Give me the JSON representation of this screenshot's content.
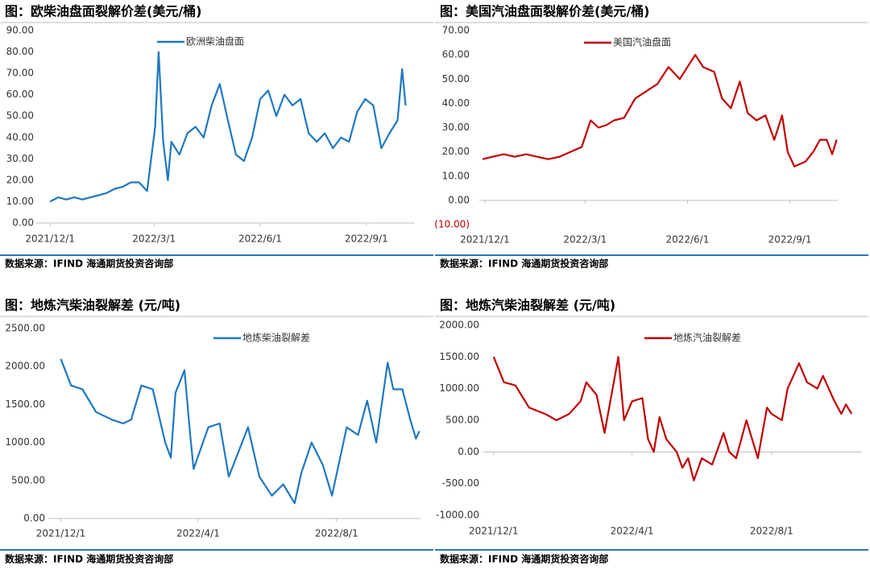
{
  "chart_data": [
    {
      "type": "line",
      "title": "图：欧柴油盘面裂解价差(美元/桶)",
      "source": "数据来源：IFIND  海通期货投资咨询部",
      "x": [
        "2021-12-01",
        "2021-12-08",
        "2021-12-15",
        "2021-12-22",
        "2021-12-29",
        "2022-01-05",
        "2022-01-12",
        "2022-01-19",
        "2022-01-26",
        "2022-02-02",
        "2022-02-09",
        "2022-02-16",
        "2022-02-23",
        "2022-03-02",
        "2022-03-05",
        "2022-03-09",
        "2022-03-13",
        "2022-03-16",
        "2022-03-23",
        "2022-03-30",
        "2022-04-06",
        "2022-04-13",
        "2022-04-20",
        "2022-04-27",
        "2022-05-04",
        "2022-05-11",
        "2022-05-18",
        "2022-05-25",
        "2022-06-01",
        "2022-06-08",
        "2022-06-15",
        "2022-06-22",
        "2022-06-29",
        "2022-07-06",
        "2022-07-13",
        "2022-07-20",
        "2022-07-27",
        "2022-08-03",
        "2022-08-10",
        "2022-08-17",
        "2022-08-24",
        "2022-08-31",
        "2022-09-07",
        "2022-09-14",
        "2022-09-21",
        "2022-09-28",
        "2022-10-02",
        "2022-10-05"
      ],
      "series": [
        {
          "name": "欧洲柴油盘面",
          "color": "#1f78c1",
          "values": [
            10,
            12,
            11,
            12,
            11,
            12,
            13,
            14,
            16,
            17,
            19,
            19,
            15,
            45,
            80,
            38,
            20,
            38,
            32,
            42,
            45,
            40,
            55,
            65,
            48,
            32,
            29,
            40,
            58,
            62,
            50,
            60,
            55,
            58,
            42,
            38,
            42,
            35,
            40,
            38,
            52,
            58,
            55,
            35,
            42,
            48,
            72,
            55
          ]
        }
      ],
      "xlim": [
        "2021-11-19",
        "2022-10-13"
      ],
      "xticks": [
        {
          "value": "2021-12-01",
          "label": "2021/12/1"
        },
        {
          "value": "2022-03-01",
          "label": "2022/3/1"
        },
        {
          "value": "2022-06-01",
          "label": "2022/6/1"
        },
        {
          "value": "2022-09-01",
          "label": "2022/9/1"
        }
      ],
      "ylim": [
        0,
        90
      ],
      "yticks": [
        {
          "value": 0,
          "label": "0.00"
        },
        {
          "value": 10,
          "label": "10.00"
        },
        {
          "value": 20,
          "label": "20.00"
        },
        {
          "value": 30,
          "label": "30.00"
        },
        {
          "value": 40,
          "label": "40.00"
        },
        {
          "value": 50,
          "label": "50.00"
        },
        {
          "value": 60,
          "label": "60.00"
        },
        {
          "value": 70,
          "label": "70.00"
        },
        {
          "value": 80,
          "label": "80.00"
        },
        {
          "value": 90,
          "label": "90.00"
        }
      ],
      "grid": false,
      "legend": "top"
    },
    {
      "type": "line",
      "title": "图：美国汽油盘面裂解价差(美元/桶)",
      "source": "数据来源：IFIND  海通期货投资咨询部",
      "x": [
        "2021-11-29",
        "2021-12-08",
        "2021-12-18",
        "2021-12-28",
        "2022-01-07",
        "2022-01-17",
        "2022-01-27",
        "2022-02-06",
        "2022-02-16",
        "2022-02-26",
        "2022-03-06",
        "2022-03-13",
        "2022-03-20",
        "2022-03-27",
        "2022-04-05",
        "2022-04-15",
        "2022-04-25",
        "2022-05-05",
        "2022-05-15",
        "2022-05-25",
        "2022-06-01",
        "2022-06-08",
        "2022-06-15",
        "2022-06-25",
        "2022-07-02",
        "2022-07-10",
        "2022-07-18",
        "2022-07-25",
        "2022-08-02",
        "2022-08-10",
        "2022-08-18",
        "2022-08-25",
        "2022-08-30",
        "2022-09-05",
        "2022-09-15",
        "2022-09-22",
        "2022-09-28",
        "2022-10-04",
        "2022-10-09",
        "2022-10-13"
      ],
      "series": [
        {
          "name": "美国汽油盘面",
          "color": "#c00000",
          "values": [
            17,
            18,
            19,
            18,
            19,
            18,
            17,
            18,
            20,
            22,
            33,
            30,
            31,
            33,
            34,
            42,
            45,
            48,
            55,
            50,
            55,
            60,
            55,
            53,
            42,
            38,
            49,
            36,
            33,
            35,
            25,
            35,
            20,
            14,
            16,
            20,
            25,
            25,
            19,
            25
          ]
        }
      ],
      "xlim": [
        "2021-11-26",
        "2022-10-14"
      ],
      "xticks": [
        {
          "value": "2021-12-01",
          "label": "2021/12/1"
        },
        {
          "value": "2022-03-01",
          "label": "2022/3/1"
        },
        {
          "value": "2022-06-01",
          "label": "2022/6/1"
        },
        {
          "value": "2022-09-01",
          "label": "2022/9/1"
        }
      ],
      "ylim": [
        -10,
        70
      ],
      "yticks": [
        {
          "value": -10,
          "label": "(10.00)"
        },
        {
          "value": 0,
          "label": "0.00"
        },
        {
          "value": 10,
          "label": "10.00"
        },
        {
          "value": 20,
          "label": "20.00"
        },
        {
          "value": 30,
          "label": "30.00"
        },
        {
          "value": 40,
          "label": "40.00"
        },
        {
          "value": 50,
          "label": "50.00"
        },
        {
          "value": 60,
          "label": "60.00"
        },
        {
          "value": 70,
          "label": "70.00"
        }
      ],
      "grid": false,
      "legend": "top"
    },
    {
      "type": "line",
      "title": "图：地炼汽柴油裂解差 (元/吨)",
      "source": "数据来源：IFIND  海通期货投资咨询部",
      "x": [
        "2021-12-01",
        "2021-12-10",
        "2021-12-20",
        "2022-01-01",
        "2022-01-15",
        "2022-01-25",
        "2022-02-01",
        "2022-02-10",
        "2022-02-20",
        "2022-03-03",
        "2022-03-08",
        "2022-03-12",
        "2022-03-20",
        "2022-03-25",
        "2022-03-28",
        "2022-04-10",
        "2022-04-20",
        "2022-04-28",
        "2022-05-15",
        "2022-05-25",
        "2022-06-05",
        "2022-06-15",
        "2022-06-25",
        "2022-07-01",
        "2022-07-10",
        "2022-07-20",
        "2022-07-28",
        "2022-08-10",
        "2022-08-20",
        "2022-08-28",
        "2022-09-05",
        "2022-09-15",
        "2022-09-20",
        "2022-09-28",
        "2022-10-05",
        "2022-10-10",
        "2022-10-13"
      ],
      "series": [
        {
          "name": "地炼柴油裂解差",
          "color": "#1f78c1",
          "values": [
            2100,
            1750,
            1700,
            1400,
            1300,
            1250,
            1300,
            1750,
            1700,
            1000,
            800,
            1650,
            1950,
            1100,
            650,
            1200,
            1250,
            550,
            1200,
            550,
            300,
            450,
            200,
            600,
            1000,
            700,
            300,
            1200,
            1100,
            1550,
            1000,
            2050,
            1700,
            1700,
            1300,
            1050,
            1150
          ]
        }
      ],
      "xlim": [
        "2021-11-20",
        "2022-10-14"
      ],
      "xticks": [
        {
          "value": "2021-12-01",
          "label": "2021/12/1"
        },
        {
          "value": "2022-04-01",
          "label": "2022/4/1"
        },
        {
          "value": "2022-08-01",
          "label": "2022/8/1"
        }
      ],
      "ylim": [
        0,
        2500
      ],
      "yticks": [
        {
          "value": 0,
          "label": "0.00"
        },
        {
          "value": 500,
          "label": "500.00"
        },
        {
          "value": 1000,
          "label": "1000.00"
        },
        {
          "value": 1500,
          "label": "1500.00"
        },
        {
          "value": 2000,
          "label": "2000.00"
        },
        {
          "value": 2500,
          "label": "2500.00"
        }
      ],
      "grid": false,
      "legend": "top"
    },
    {
      "type": "line",
      "title": "图：地炼汽柴油裂解差 (元/吨)",
      "source": "数据来源：IFIND  海通期货投资咨询部",
      "x": [
        "2021-12-01",
        "2021-12-10",
        "2021-12-20",
        "2022-01-01",
        "2022-01-15",
        "2022-01-25",
        "2022-02-05",
        "2022-02-15",
        "2022-02-20",
        "2022-03-01",
        "2022-03-08",
        "2022-03-15",
        "2022-03-20",
        "2022-03-25",
        "2022-04-01",
        "2022-04-10",
        "2022-04-15",
        "2022-04-20",
        "2022-04-25",
        "2022-05-01",
        "2022-05-10",
        "2022-05-15",
        "2022-05-20",
        "2022-05-25",
        "2022-06-01",
        "2022-06-10",
        "2022-06-20",
        "2022-06-25",
        "2022-07-01",
        "2022-07-10",
        "2022-07-15",
        "2022-07-20",
        "2022-07-28",
        "2022-08-01",
        "2022-08-10",
        "2022-08-15",
        "2022-08-25",
        "2022-09-01",
        "2022-09-10",
        "2022-09-15",
        "2022-09-25",
        "2022-10-01",
        "2022-10-05",
        "2022-10-10"
      ],
      "series": [
        {
          "name": "地炼汽油裂解差",
          "color": "#c00000",
          "values": [
            1500,
            1100,
            1050,
            700,
            600,
            500,
            600,
            800,
            1100,
            900,
            300,
            1000,
            1500,
            500,
            800,
            850,
            200,
            0,
            550,
            200,
            0,
            -250,
            -100,
            -450,
            -100,
            -200,
            300,
            0,
            -100,
            500,
            200,
            -100,
            700,
            600,
            500,
            1000,
            1400,
            1100,
            1000,
            1200,
            800,
            600,
            750,
            600
          ]
        }
      ],
      "xlim": [
        "2021-11-22",
        "2022-10-19"
      ],
      "xticks": [
        {
          "value": "2021-12-01",
          "label": "2021/12/1"
        },
        {
          "value": "2022-04-01",
          "label": "2022/4/1"
        },
        {
          "value": "2022-08-01",
          "label": "2022/8/1"
        }
      ],
      "ylim": [
        -1000,
        2000
      ],
      "yticks": [
        {
          "value": -1000,
          "label": "-1000.00"
        },
        {
          "value": -500,
          "label": "-500.00"
        },
        {
          "value": 0,
          "label": "0.00"
        },
        {
          "value": 500,
          "label": "500.00"
        },
        {
          "value": 1000,
          "label": "1000.00"
        },
        {
          "value": 1500,
          "label": "1500.00"
        },
        {
          "value": 2000,
          "label": "2000.00"
        }
      ],
      "grid": false,
      "legend": "top"
    }
  ]
}
